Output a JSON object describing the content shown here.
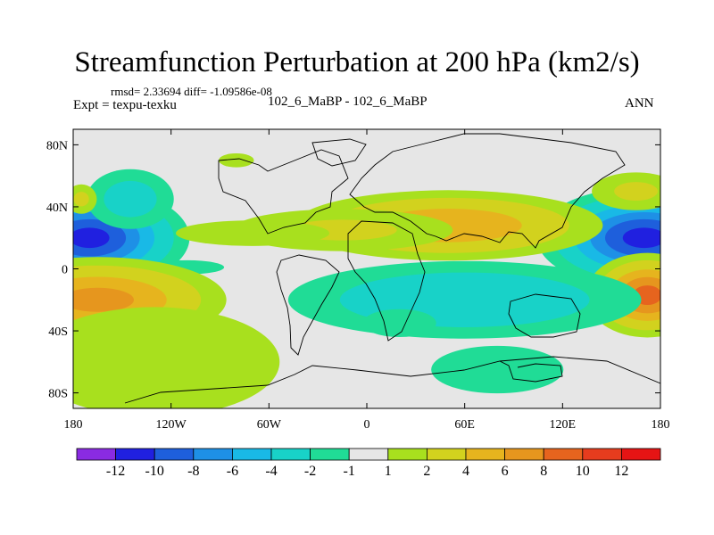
{
  "chart_data": {
    "type": "contour-map",
    "title": "Streamfunction Perturbation at 200 hPa (km2/s)",
    "stats": "rmsd= 2.33694 diff= -1.09586e-08",
    "left_label": "Expt = texpu-texku",
    "center_label": "102_6_MaBP - 102_6_MaBP",
    "right_label": "ANN",
    "lon_range": [
      -180,
      180
    ],
    "lat_range": [
      -90,
      90
    ],
    "x_ticks": [
      {
        "value": -180,
        "label": "180"
      },
      {
        "value": -120,
        "label": "120W"
      },
      {
        "value": -60,
        "label": "60W"
      },
      {
        "value": 0,
        "label": "0"
      },
      {
        "value": 60,
        "label": "60E"
      },
      {
        "value": 120,
        "label": "120E"
      },
      {
        "value": 180,
        "label": "180"
      }
    ],
    "y_ticks": [
      {
        "value": 80,
        "label": "80N"
      },
      {
        "value": 40,
        "label": "40N"
      },
      {
        "value": 0,
        "label": "0"
      },
      {
        "value": -40,
        "label": "40S"
      },
      {
        "value": -80,
        "label": "80S"
      }
    ],
    "colorbar": {
      "colors": [
        "#8a2be2",
        "#2020e0",
        "#1e5fdc",
        "#1e90e6",
        "#19b9e6",
        "#18d2c8",
        "#20dc96",
        "#e6e6e6",
        "#a8e01e",
        "#d2d21e",
        "#e6b41e",
        "#e6961e",
        "#e6641e",
        "#e63c1e",
        "#e61414"
      ],
      "labels": [
        "-12",
        "-10",
        "-8",
        "-6",
        "-4",
        "-2",
        "-1",
        "1",
        "2",
        "4",
        "6",
        "8",
        "10",
        "12"
      ]
    },
    "blobs": [
      {
        "lon": -170,
        "lat": 20,
        "lon_radius": 28,
        "lat_radius": 15,
        "value": -11
      },
      {
        "lon": 170,
        "lat": 20,
        "lon_radius": 30,
        "lat_radius": 15,
        "value": -11
      },
      {
        "lon": -145,
        "lat": 45,
        "lon_radius": 18,
        "lat_radius": 13,
        "value": -3
      },
      {
        "lon": -175,
        "lat": 45,
        "lon_radius": 7,
        "lat_radius": 7,
        "value": 2.5
      },
      {
        "lon": 165,
        "lat": 50,
        "lon_radius": 20,
        "lat_radius": 9,
        "value": 2.5
      },
      {
        "lon": 50,
        "lat": 28,
        "lon_radius": 50,
        "lat_radius": 12,
        "value": 6
      },
      {
        "lon": -15,
        "lat": 25,
        "lon_radius": 50,
        "lat_radius": 10,
        "value": 2.5
      },
      {
        "lon": -70,
        "lat": 23,
        "lon_radius": 40,
        "lat_radius": 7,
        "value": 2
      },
      {
        "lon": -80,
        "lat": 70,
        "lon_radius": 12,
        "lat_radius": 5,
        "value": 1.5
      },
      {
        "lon": -110,
        "lat": 1,
        "lon_radius": 25,
        "lat_radius": 5,
        "value": -1.5
      },
      {
        "lon": -165,
        "lat": -20,
        "lon_radius": 40,
        "lat_radius": 14,
        "value": 7
      },
      {
        "lon": 172,
        "lat": -17,
        "lon_radius": 18,
        "lat_radius": 13,
        "value": 9
      },
      {
        "lon": -130,
        "lat": -60,
        "lon_radius": 65,
        "lat_radius": 30,
        "value": 2
      },
      {
        "lon": 60,
        "lat": -20,
        "lon_radius": 65,
        "lat_radius": 15,
        "value": -4
      },
      {
        "lon": 20,
        "lat": -35,
        "lon_radius": 25,
        "lat_radius": 10,
        "value": -1.5
      },
      {
        "lon": 80,
        "lat": -65,
        "lon_radius": 45,
        "lat_radius": 17,
        "value": -1.5
      }
    ]
  }
}
